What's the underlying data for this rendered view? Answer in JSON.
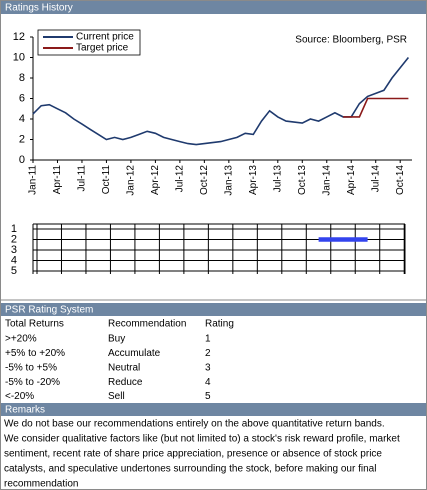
{
  "header": {
    "title": "Ratings History"
  },
  "chart_data": [
    {
      "type": "line",
      "categories": [
        "Jan-11",
        null,
        null,
        "Apr-11",
        null,
        null,
        "Jul-11",
        null,
        null,
        "Oct-11",
        null,
        null,
        "Jan-12",
        null,
        null,
        "Apr-12",
        null,
        null,
        "Jul-12",
        null,
        null,
        "Oct-12",
        null,
        null,
        "Jan-13",
        null,
        null,
        "Apr-13",
        null,
        null,
        "Jul-13",
        null,
        null,
        "Oct-13",
        null,
        null,
        "Jan-14",
        null,
        null,
        "Apr-14",
        null,
        null,
        "Jul-14",
        null,
        null,
        "Oct-14",
        null
      ],
      "series": [
        {
          "name": "Current price",
          "color": "#1f3a6e",
          "values": [
            4.5,
            5.3,
            5.4,
            5.0,
            4.6,
            4.0,
            3.5,
            3.0,
            2.5,
            2.0,
            2.2,
            2.0,
            2.2,
            2.5,
            2.8,
            2.6,
            2.2,
            2.0,
            1.8,
            1.6,
            1.5,
            1.6,
            1.7,
            1.8,
            2.0,
            2.2,
            2.6,
            2.5,
            3.8,
            4.8,
            4.2,
            3.8,
            3.7,
            3.6,
            4.0,
            3.8,
            4.2,
            4.6,
            4.2,
            4.2,
            5.5,
            6.2,
            6.5,
            6.8,
            8.0,
            9.0,
            10.0
          ]
        },
        {
          "name": "Target price",
          "color": "#8b1a1a",
          "values": [
            null,
            null,
            null,
            null,
            null,
            null,
            null,
            null,
            null,
            null,
            null,
            null,
            null,
            null,
            null,
            null,
            null,
            null,
            null,
            null,
            null,
            null,
            null,
            null,
            null,
            null,
            null,
            null,
            null,
            null,
            null,
            null,
            null,
            null,
            null,
            null,
            null,
            null,
            4.2,
            4.2,
            4.2,
            6,
            6,
            6,
            6,
            6,
            6
          ]
        }
      ],
      "ylim": [
        0,
        12
      ],
      "yticks": [
        0,
        2,
        4,
        6,
        8,
        10,
        12
      ],
      "annotation": "Source: Bloomberg, PSR",
      "legend": "upper left",
      "grid": false
    },
    {
      "type": "line",
      "values": [
        null,
        null,
        null,
        null,
        null,
        null,
        null,
        null,
        null,
        null,
        null,
        null,
        null,
        null,
        null,
        null,
        null,
        null,
        null,
        null,
        null,
        null,
        null,
        null,
        null,
        null,
        null,
        null,
        null,
        null,
        null,
        null,
        null,
        null,
        null,
        2,
        2,
        2,
        2,
        2,
        2,
        2,
        null,
        null,
        null,
        null,
        null
      ],
      "color": "#3344ee",
      "ylim": [
        1,
        5
      ],
      "yticks": [
        1,
        2,
        3,
        4,
        5
      ],
      "inverted": true,
      "grid": true
    }
  ],
  "rating_system": {
    "title": "PSR Rating System",
    "columns": [
      "Total Returns",
      "Recommendation",
      "Rating"
    ],
    "rows": [
      [
        ">+20%",
        "Buy",
        1
      ],
      [
        "+5% to +20%",
        "Accumulate",
        2
      ],
      [
        "-5% to +5%",
        "Neutral",
        3
      ],
      [
        "-5% to -20%",
        "Reduce",
        4
      ],
      [
        "<-20%",
        "Sell",
        5
      ]
    ]
  },
  "remarks": {
    "title": "Remarks",
    "lines": [
      "We do not base our recommendations entirely on the  above quantitative return bands.",
      "We consider qualitative factors like (but not limited to) a stock's risk reward profile, market",
      "sentiment, recent rate of share price appreciation, presence or absence of stock price",
      "catalysts, and speculative undertones surrounding the stock, before making our final",
      "recommendation"
    ]
  }
}
